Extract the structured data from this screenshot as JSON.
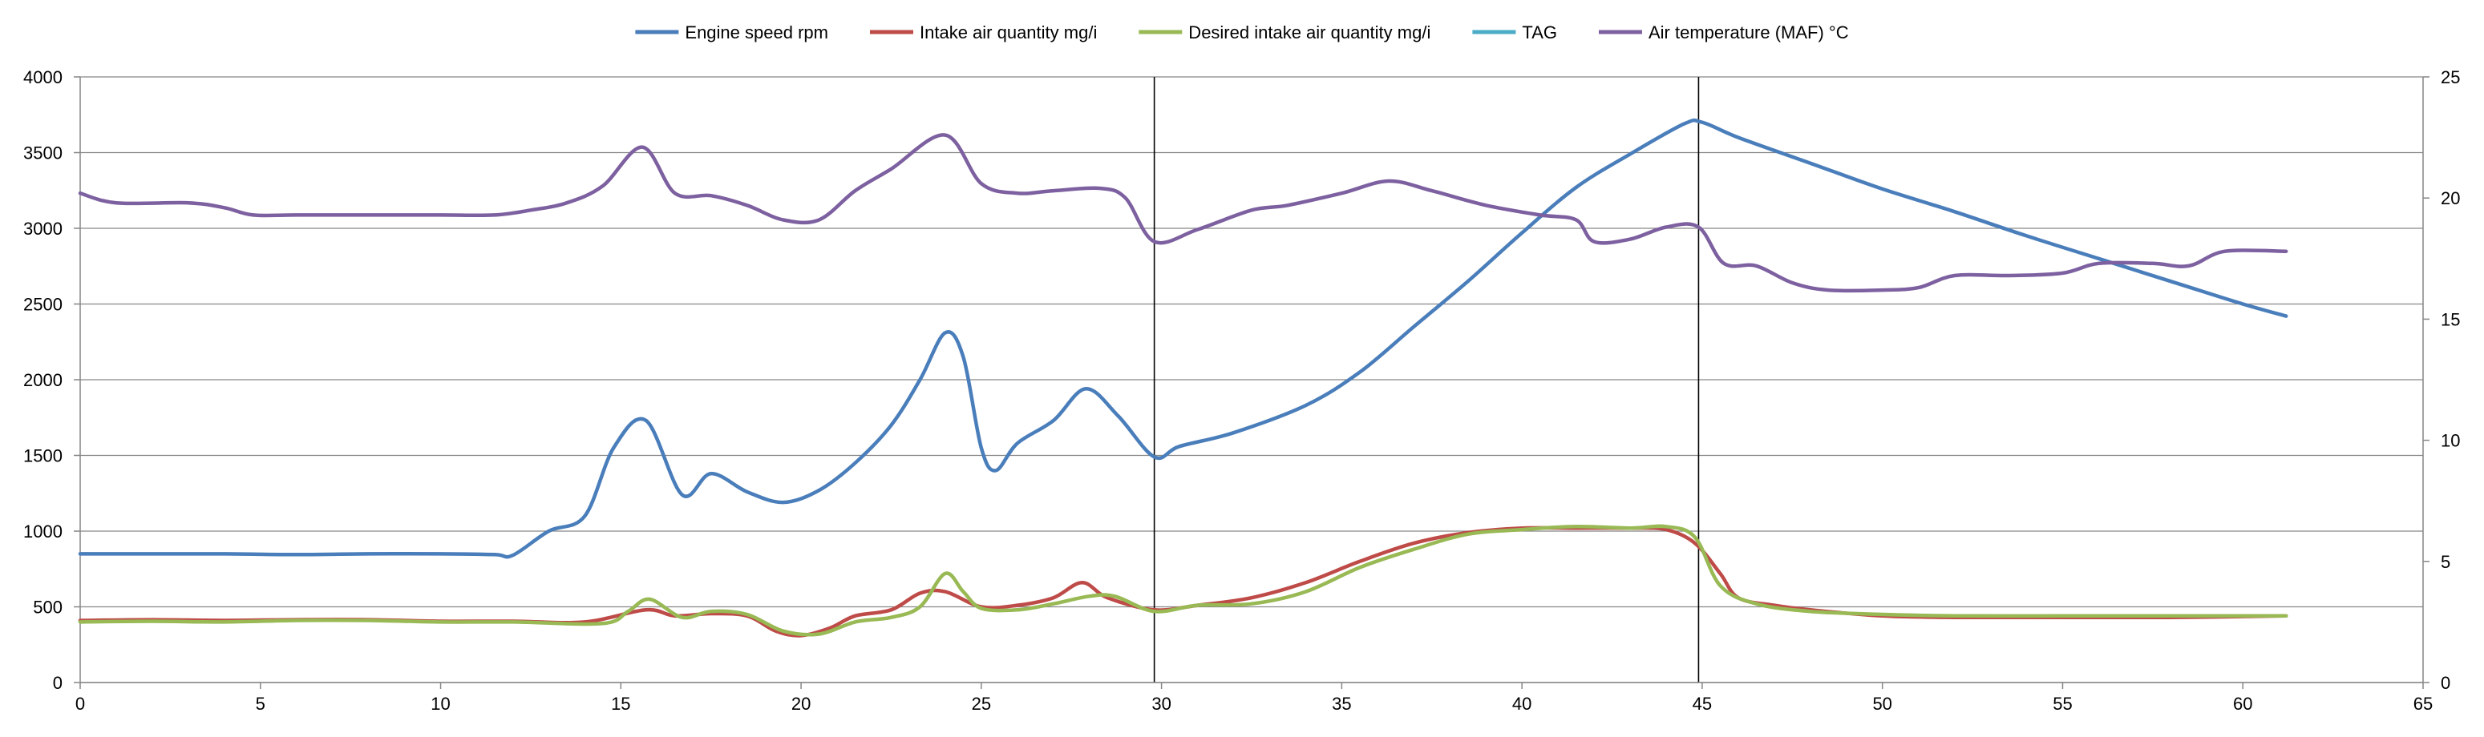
{
  "chart_data": {
    "type": "line",
    "title": "",
    "xlabel": "",
    "ylabel": "",
    "y2label": "",
    "xlim": [
      0,
      65
    ],
    "ylim": [
      0,
      4000
    ],
    "y2lim": [
      0,
      25
    ],
    "x_ticks": [
      "0",
      "5",
      "10",
      "15",
      "20",
      "25",
      "30",
      "35",
      "40",
      "45",
      "50",
      "55",
      "60",
      "65"
    ],
    "y_ticks": [
      "0",
      "500",
      "1000",
      "1500",
      "2000",
      "2500",
      "3000",
      "3500",
      "4000"
    ],
    "y2_ticks": [
      "0",
      "5",
      "10",
      "15",
      "20",
      "25"
    ],
    "grid": "horizontal",
    "legend_position": "top",
    "vertical_markers": [
      29.8,
      44.9
    ],
    "series": [
      {
        "name": "Engine speed rpm",
        "color": "#4a7ebb",
        "axis": "left",
        "points": [
          [
            0,
            850
          ],
          [
            2,
            850
          ],
          [
            4,
            850
          ],
          [
            6,
            845
          ],
          [
            8,
            850
          ],
          [
            10,
            850
          ],
          [
            11.5,
            845
          ],
          [
            12,
            840
          ],
          [
            13,
            1000
          ],
          [
            14,
            1100
          ],
          [
            14.8,
            1550
          ],
          [
            15.7,
            1730
          ],
          [
            16.7,
            1240
          ],
          [
            17.5,
            1380
          ],
          [
            18.5,
            1260
          ],
          [
            19.5,
            1190
          ],
          [
            20.5,
            1270
          ],
          [
            21.5,
            1450
          ],
          [
            22.5,
            1700
          ],
          [
            23.3,
            2000
          ],
          [
            24,
            2310
          ],
          [
            24.5,
            2150
          ],
          [
            25,
            1550
          ],
          [
            25.4,
            1400
          ],
          [
            26,
            1580
          ],
          [
            27,
            1730
          ],
          [
            27.9,
            1940
          ],
          [
            28.8,
            1760
          ],
          [
            29.8,
            1490
          ],
          [
            30.5,
            1560
          ],
          [
            32,
            1650
          ],
          [
            34,
            1830
          ],
          [
            35.5,
            2050
          ],
          [
            37,
            2350
          ],
          [
            38.5,
            2650
          ],
          [
            40,
            2970
          ],
          [
            41.5,
            3270
          ],
          [
            43,
            3490
          ],
          [
            44.5,
            3690
          ],
          [
            45,
            3700
          ],
          [
            46,
            3600
          ],
          [
            48,
            3430
          ],
          [
            50,
            3260
          ],
          [
            52,
            3110
          ],
          [
            54,
            2950
          ],
          [
            56,
            2800
          ],
          [
            58,
            2650
          ],
          [
            60,
            2500
          ],
          [
            61.2,
            2420
          ]
        ]
      },
      {
        "name": "Intake air quantity mg/i",
        "color": "#be4b48",
        "axis": "left",
        "points": [
          [
            0,
            410
          ],
          [
            2,
            415
          ],
          [
            4,
            410
          ],
          [
            6,
            415
          ],
          [
            8,
            415
          ],
          [
            10,
            405
          ],
          [
            12,
            405
          ],
          [
            14,
            400
          ],
          [
            15.7,
            480
          ],
          [
            16.5,
            440
          ],
          [
            17.5,
            455
          ],
          [
            18.5,
            440
          ],
          [
            19.3,
            340
          ],
          [
            20,
            310
          ],
          [
            20.8,
            360
          ],
          [
            21.5,
            440
          ],
          [
            22.5,
            480
          ],
          [
            23.3,
            590
          ],
          [
            24,
            600
          ],
          [
            25,
            500
          ],
          [
            26,
            510
          ],
          [
            27,
            560
          ],
          [
            27.8,
            660
          ],
          [
            28.5,
            560
          ],
          [
            29.8,
            480
          ],
          [
            31,
            510
          ],
          [
            32.5,
            560
          ],
          [
            34,
            660
          ],
          [
            35.5,
            800
          ],
          [
            37,
            920
          ],
          [
            38.5,
            990
          ],
          [
            40,
            1020
          ],
          [
            41.5,
            1020
          ],
          [
            43,
            1020
          ],
          [
            44,
            1010
          ],
          [
            44.8,
            920
          ],
          [
            45.5,
            720
          ],
          [
            46,
            560
          ],
          [
            47,
            510
          ],
          [
            48,
            480
          ],
          [
            50,
            440
          ],
          [
            52,
            430
          ],
          [
            55,
            430
          ],
          [
            58,
            430
          ],
          [
            61.2,
            440
          ]
        ]
      },
      {
        "name": "Desired intake air quantity mg/i",
        "color": "#98b954",
        "axis": "left",
        "points": [
          [
            0,
            400
          ],
          [
            2,
            405
          ],
          [
            4,
            400
          ],
          [
            6,
            410
          ],
          [
            8,
            410
          ],
          [
            10,
            400
          ],
          [
            12,
            400
          ],
          [
            14.5,
            390
          ],
          [
            15.2,
            470
          ],
          [
            15.8,
            550
          ],
          [
            16.7,
            430
          ],
          [
            17.5,
            470
          ],
          [
            18.5,
            450
          ],
          [
            19.5,
            340
          ],
          [
            20.5,
            320
          ],
          [
            21.5,
            400
          ],
          [
            22.5,
            430
          ],
          [
            23.3,
            500
          ],
          [
            24,
            720
          ],
          [
            24.5,
            600
          ],
          [
            25,
            490
          ],
          [
            26,
            480
          ],
          [
            27,
            520
          ],
          [
            28,
            570
          ],
          [
            28.7,
            570
          ],
          [
            29.8,
            470
          ],
          [
            31,
            510
          ],
          [
            32.5,
            520
          ],
          [
            34,
            600
          ],
          [
            35.5,
            760
          ],
          [
            37,
            880
          ],
          [
            38.5,
            980
          ],
          [
            40,
            1010
          ],
          [
            41.5,
            1030
          ],
          [
            43,
            1020
          ],
          [
            44,
            1030
          ],
          [
            44.8,
            960
          ],
          [
            45.5,
            640
          ],
          [
            46.5,
            520
          ],
          [
            48,
            470
          ],
          [
            50,
            450
          ],
          [
            52,
            440
          ],
          [
            55,
            440
          ],
          [
            58,
            440
          ],
          [
            61.2,
            440
          ]
        ]
      },
      {
        "name": "TAG",
        "color": "#4bacc6",
        "axis": "right",
        "points": []
      },
      {
        "name": "Air temperature (MAF) °C",
        "color": "#7d60a0",
        "axis": "right",
        "points": [
          [
            0,
            20.2
          ],
          [
            1,
            19.8
          ],
          [
            3,
            19.8
          ],
          [
            4,
            19.6
          ],
          [
            4.8,
            19.3
          ],
          [
            6,
            19.3
          ],
          [
            8,
            19.3
          ],
          [
            10,
            19.3
          ],
          [
            11.5,
            19.3
          ],
          [
            12.5,
            19.5
          ],
          [
            13.5,
            19.8
          ],
          [
            14.5,
            20.5
          ],
          [
            15.6,
            22.1
          ],
          [
            16.5,
            20.2
          ],
          [
            17.5,
            20.1
          ],
          [
            18.5,
            19.7
          ],
          [
            19.5,
            19.1
          ],
          [
            20.5,
            19.1
          ],
          [
            21.5,
            20.3
          ],
          [
            22.5,
            21.2
          ],
          [
            24,
            22.6
          ],
          [
            25,
            20.6
          ],
          [
            26,
            20.2
          ],
          [
            27,
            20.3
          ],
          [
            28.3,
            20.4
          ],
          [
            29,
            20
          ],
          [
            29.8,
            18.2
          ],
          [
            31,
            18.7
          ],
          [
            32.5,
            19.5
          ],
          [
            33.5,
            19.7
          ],
          [
            35,
            20.2
          ],
          [
            36.3,
            20.7
          ],
          [
            37.5,
            20.3
          ],
          [
            39,
            19.7
          ],
          [
            40.5,
            19.3
          ],
          [
            41.5,
            19.1
          ],
          [
            42,
            18.2
          ],
          [
            43,
            18.3
          ],
          [
            44,
            18.8
          ],
          [
            44.9,
            18.8
          ],
          [
            45.6,
            17.3
          ],
          [
            46.5,
            17.2
          ],
          [
            47.5,
            16.5
          ],
          [
            48.5,
            16.2
          ],
          [
            50,
            16.2
          ],
          [
            51,
            16.3
          ],
          [
            52,
            16.8
          ],
          [
            53.5,
            16.8
          ],
          [
            55,
            16.9
          ],
          [
            56,
            17.3
          ],
          [
            57.5,
            17.3
          ],
          [
            58.5,
            17.2
          ],
          [
            59.5,
            17.8
          ],
          [
            61.2,
            17.8
          ]
        ]
      }
    ]
  }
}
